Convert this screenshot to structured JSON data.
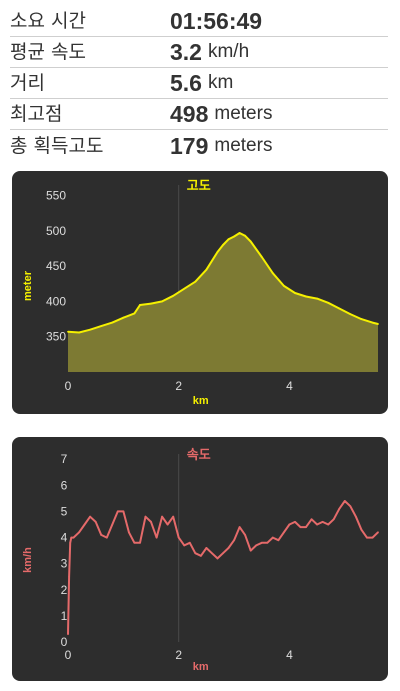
{
  "stats": [
    {
      "label": "소요 시간",
      "value": "01:56:49",
      "unit": ""
    },
    {
      "label": "평균 속도",
      "value": "3.2",
      "unit": "km/h"
    },
    {
      "label": "거리",
      "value": "5.6",
      "unit": "km"
    },
    {
      "label": "최고점",
      "value": "498",
      "unit": "meters"
    },
    {
      "label": "총 획득고도",
      "value": "179",
      "unit": "meters"
    }
  ],
  "colors": {
    "panel": "#2d2d2d",
    "altitude_line": "#f5f000",
    "altitude_fill": "#7d7a33",
    "speed_line": "#e56a6a",
    "axis_text": "#dddddd"
  },
  "chart_data": [
    {
      "type": "area",
      "title": "고도",
      "xlabel": "km",
      "ylabel": "meter",
      "xlim": [
        0,
        5.6
      ],
      "ylim": [
        300,
        565
      ],
      "xticks": [
        0,
        2,
        4
      ],
      "yticks": [
        350,
        400,
        450,
        500,
        550
      ],
      "x": [
        0,
        0.2,
        0.4,
        0.6,
        0.8,
        1.0,
        1.2,
        1.3,
        1.5,
        1.7,
        1.9,
        2.1,
        2.3,
        2.5,
        2.7,
        2.8,
        2.9,
        3.0,
        3.1,
        3.2,
        3.3,
        3.5,
        3.7,
        3.9,
        4.1,
        4.3,
        4.5,
        4.7,
        4.9,
        5.1,
        5.3,
        5.5,
        5.6
      ],
      "y": [
        357,
        356,
        360,
        365,
        370,
        377,
        383,
        395,
        397,
        400,
        408,
        418,
        428,
        445,
        470,
        480,
        488,
        492,
        497,
        493,
        485,
        463,
        440,
        422,
        412,
        407,
        404,
        398,
        390,
        382,
        375,
        370,
        368
      ]
    },
    {
      "type": "line",
      "title": "속도",
      "xlabel": "km",
      "ylabel": "km/h",
      "xlim": [
        0,
        5.6
      ],
      "ylim": [
        0,
        7.2
      ],
      "xticks": [
        0,
        2,
        4
      ],
      "yticks": [
        0,
        1,
        2,
        3,
        4,
        5,
        6,
        7
      ],
      "x": [
        0,
        0.02,
        0.04,
        0.06,
        0.1,
        0.2,
        0.3,
        0.4,
        0.5,
        0.6,
        0.7,
        0.8,
        0.9,
        1.0,
        1.1,
        1.2,
        1.3,
        1.4,
        1.5,
        1.6,
        1.7,
        1.8,
        1.9,
        2.0,
        2.1,
        2.2,
        2.3,
        2.4,
        2.5,
        2.6,
        2.7,
        2.8,
        2.9,
        3.0,
        3.1,
        3.2,
        3.3,
        3.4,
        3.5,
        3.6,
        3.7,
        3.8,
        3.9,
        4.0,
        4.1,
        4.2,
        4.3,
        4.4,
        4.5,
        4.6,
        4.7,
        4.8,
        4.9,
        5.0,
        5.1,
        5.2,
        5.3,
        5.4,
        5.5,
        5.6
      ],
      "y": [
        0.3,
        2.5,
        3.8,
        4.0,
        4.0,
        4.2,
        4.5,
        4.8,
        4.6,
        4.1,
        4.0,
        4.5,
        5.0,
        5.0,
        4.2,
        3.8,
        3.8,
        4.8,
        4.6,
        4.0,
        4.8,
        4.5,
        4.8,
        4.0,
        3.7,
        3.8,
        3.4,
        3.3,
        3.6,
        3.4,
        3.2,
        3.4,
        3.6,
        3.9,
        4.4,
        4.1,
        3.5,
        3.7,
        3.8,
        3.8,
        4.0,
        3.9,
        4.2,
        4.5,
        4.6,
        4.4,
        4.4,
        4.7,
        4.5,
        4.6,
        4.5,
        4.7,
        5.1,
        5.4,
        5.2,
        4.8,
        4.3,
        4.0,
        4.0,
        4.2
      ]
    }
  ]
}
